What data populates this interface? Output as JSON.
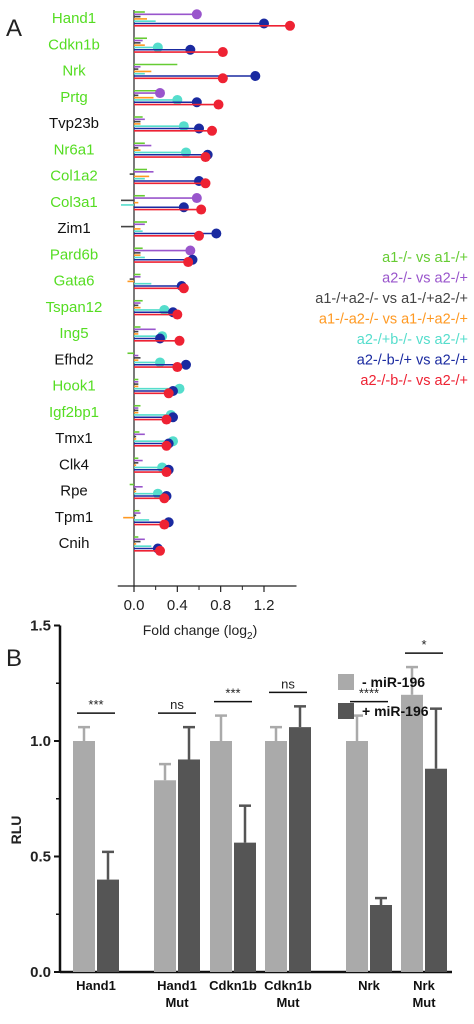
{
  "panel_a": {
    "label": "A",
    "chart_data": {
      "type": "lollipop",
      "genes": [
        "Hand1",
        "Cdkn1b",
        "Nrk",
        "Prtg",
        "Tvp23b",
        "Nr6a1",
        "Col1a2",
        "Col3a1",
        "Zim1",
        "Pard6b",
        "Gata6",
        "Tspan12",
        "Ing5",
        "Efhd2",
        "Hook1",
        "Igf2bp1",
        "Tmx1",
        "Clk4",
        "Rpe",
        "Tpm1",
        "Cnih"
      ],
      "gene_colors": [
        "#55dd22",
        "#55dd22",
        "#55dd22",
        "#55dd22",
        "#111111",
        "#55dd22",
        "#55dd22",
        "#55dd22",
        "#111111",
        "#55dd22",
        "#55dd22",
        "#55dd22",
        "#55dd22",
        "#111111",
        "#55dd22",
        "#55dd22",
        "#111111",
        "#111111",
        "#111111",
        "#111111",
        "#111111"
      ],
      "series": [
        {
          "name": "a1-/- vs a1-/+",
          "color": "#66cc33",
          "values": [
            0.1,
            0.12,
            0.4,
            0.28,
            0.08,
            0.1,
            0.12,
            0.1,
            0.12,
            0.08,
            0.06,
            0.08,
            0.06,
            -0.06,
            0.04,
            0.06,
            0.05,
            0.04,
            -0.04,
            0.05,
            0.04
          ]
        },
        {
          "name": "a2-/- vs a2-/+",
          "color": "#9955cc",
          "values": [
            0.58,
            0.08,
            0.06,
            0.24,
            0.1,
            0.16,
            0.18,
            0.58,
            0.1,
            0.52,
            0.06,
            0.06,
            0.2,
            0.04,
            0.04,
            0.04,
            0.1,
            0.08,
            0.08,
            0.06,
            0.1
          ]
        },
        {
          "name": "a1-/+a2-/- vs a1-/+a2-/+",
          "color": "#444444",
          "values": [
            0.06,
            0.06,
            0.04,
            0.04,
            0.06,
            0.04,
            -0.04,
            -0.12,
            -0.12,
            0.06,
            -0.04,
            0.04,
            0.04,
            0.06,
            0.04,
            0.04,
            0.02,
            0.04,
            0.02,
            0.02,
            0.06
          ]
        },
        {
          "name": "a1-/-a2-/- vs a1-/+a2-/+",
          "color": "#ff9922",
          "values": [
            0.12,
            0.1,
            0.16,
            0.18,
            0.06,
            0.06,
            0.14,
            0.04,
            0.06,
            0.06,
            -0.06,
            0.06,
            0.04,
            0.04,
            0.04,
            0.04,
            0.02,
            0.02,
            0.02,
            -0.1,
            0.02
          ]
        },
        {
          "name": "a2-/+b-/- vs a2-/+",
          "color": "#55ddcc",
          "values": [
            0.2,
            0.22,
            0.1,
            0.4,
            0.46,
            0.48,
            0.1,
            -0.12,
            0.08,
            0.1,
            0.16,
            0.28,
            0.26,
            0.24,
            0.42,
            0.34,
            0.36,
            0.26,
            0.22,
            0.14,
            0.16
          ]
        },
        {
          "name": "a2-/-b-/+ vs a2-/+",
          "color": "#1a2aa0",
          "values": [
            1.2,
            0.52,
            1.12,
            0.58,
            0.6,
            0.68,
            0.6,
            0.46,
            0.76,
            0.54,
            0.44,
            0.36,
            0.24,
            0.48,
            0.36,
            0.36,
            0.32,
            0.32,
            0.3,
            0.32,
            0.22
          ]
        },
        {
          "name": "a2-/-b-/- vs a2-/+",
          "color": "#ee2233",
          "values": [
            1.44,
            0.82,
            0.82,
            0.78,
            0.72,
            0.66,
            0.66,
            0.62,
            0.6,
            0.5,
            0.46,
            0.4,
            0.42,
            0.4,
            0.32,
            0.3,
            0.3,
            0.3,
            0.28,
            0.28,
            0.24
          ]
        }
      ],
      "x_ticks": [
        "0.0",
        "0.4",
        "0.8",
        "1.2"
      ],
      "x_minor_ticks": [
        0.2,
        0.6,
        1.0
      ],
      "xlabel": "Fold change (log",
      "xlabel_sub": "2",
      "xlabel_end": ")",
      "xlim": [
        -0.15,
        1.5
      ]
    }
  },
  "panel_b": {
    "label": "B",
    "chart_data": {
      "type": "bar",
      "categories": [
        "Hand1",
        "Hand1\nMut",
        "Cdkn1b",
        "Cdkn1b\nMut",
        "Nrk",
        "Nrk\nMut"
      ],
      "category_lines": [
        [
          "Hand1"
        ],
        [
          "Hand1",
          "Mut"
        ],
        [
          "Cdkn1b"
        ],
        [
          "Cdkn1b",
          "Mut"
        ],
        [
          "Nrk"
        ],
        [
          "Nrk",
          "Mut"
        ]
      ],
      "series": [
        {
          "name": "- miR-196",
          "color": "#aaaaaa",
          "values": [
            1.0,
            0.83,
            1.0,
            1.0,
            1.0,
            1.2
          ],
          "errors": [
            0.06,
            0.07,
            0.11,
            0.06,
            0.11,
            0.12
          ]
        },
        {
          "name": "+ miR-196",
          "color": "#555555",
          "values": [
            0.4,
            0.92,
            0.56,
            1.06,
            0.29,
            0.88
          ],
          "errors": [
            0.12,
            0.14,
            0.16,
            0.09,
            0.03,
            0.26
          ]
        }
      ],
      "significance": [
        "***",
        "ns",
        "***",
        "ns",
        "****",
        "*"
      ],
      "ylabel": "RLU",
      "y_ticks": [
        "0.0",
        "0.5",
        "1.0",
        "1.5"
      ],
      "ylim": [
        0,
        1.5
      ],
      "legend_position": "top-right"
    }
  }
}
